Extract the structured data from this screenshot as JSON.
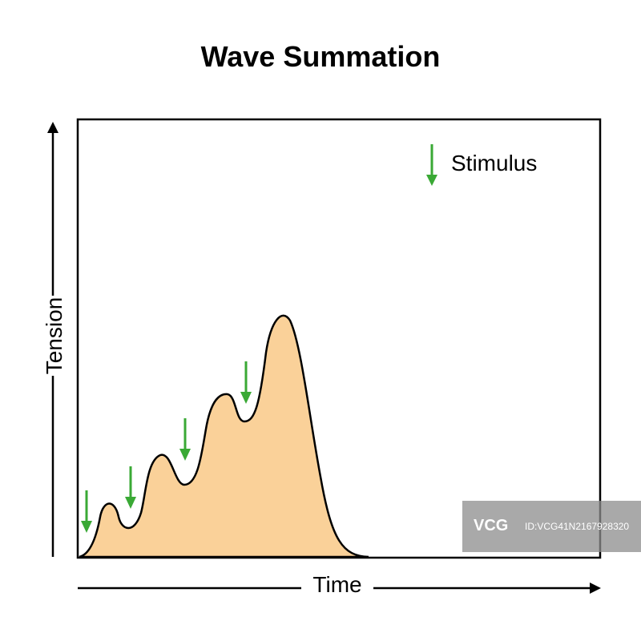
{
  "title": "Wave Summation",
  "axes": {
    "x_label": "Time",
    "y_label": "Tension"
  },
  "legend": {
    "label": "Stimulus",
    "icon": "green-down-arrow-icon"
  },
  "colors": {
    "fill": "#fad199",
    "stroke": "#000000",
    "stimulus": "#3aa935",
    "watermark": "#8c8c8c"
  },
  "stimuli_count": 4,
  "watermark": {
    "logo": "VCG",
    "id": "ID:VCG41N2167928320"
  }
}
